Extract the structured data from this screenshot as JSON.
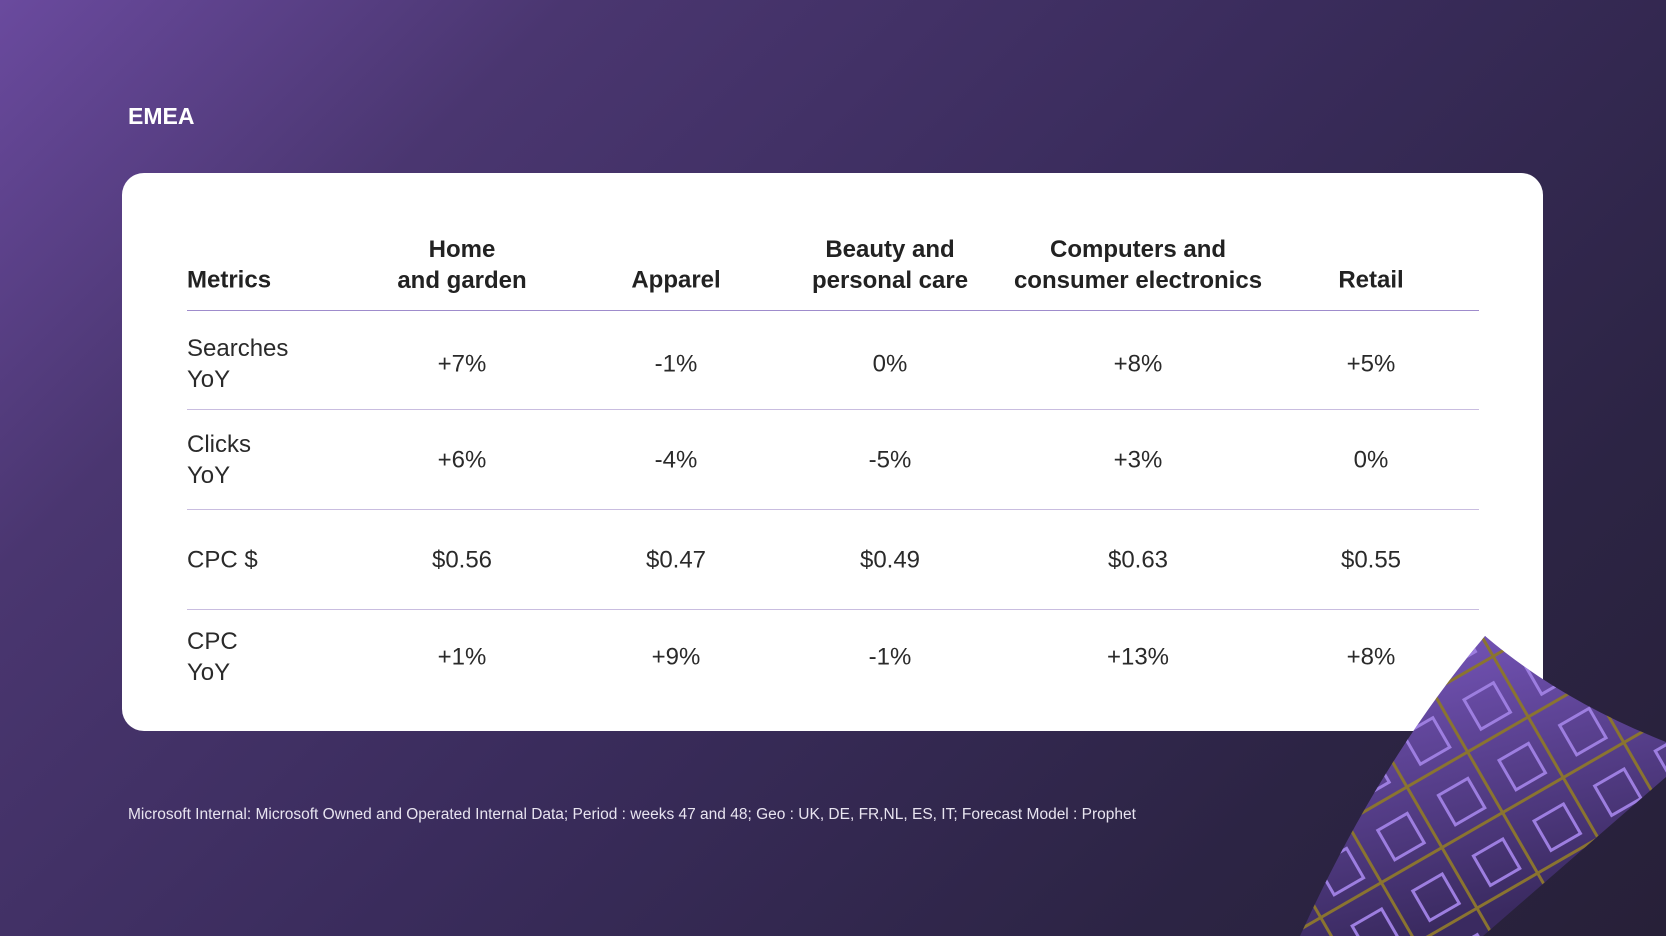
{
  "title": "EMEA",
  "table": {
    "headers": [
      "Metrics",
      "Home\nand garden",
      "Apparel",
      "Beauty and\npersonal care",
      "Computers and\nconsumer electronics",
      "Retail"
    ],
    "rows": [
      {
        "metric": "Searches\nYoY",
        "values": [
          "+7%",
          "-1%",
          "0%",
          "+8%",
          "+5%"
        ]
      },
      {
        "metric": "Clicks\nYoY",
        "values": [
          "+6%",
          "-4%",
          "-5%",
          "+3%",
          "0%"
        ]
      },
      {
        "metric": "CPC $",
        "values": [
          "$0.56",
          "$0.47",
          "$0.49",
          "$0.63",
          "$0.55"
        ]
      },
      {
        "metric": "CPC\nYoY",
        "values": [
          "+1%",
          "+9%",
          "-1%",
          "+13%",
          "+8%"
        ]
      }
    ]
  },
  "footnote": "Microsoft Internal: Microsoft Owned and Operated Internal Data; Period : weeks 47 and 48; Geo : UK, DE, FR,NL, ES, IT; Forecast Model : Prophet",
  "colors": {
    "accent": "#7b5cc4",
    "pattern_gold": "#8a7430",
    "pattern_lavender": "#9d7ee0"
  }
}
